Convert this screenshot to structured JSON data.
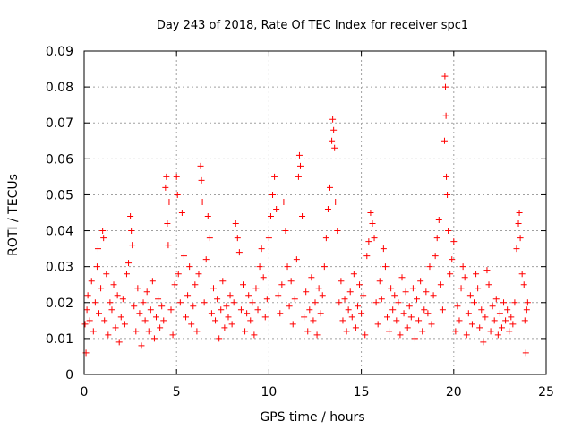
{
  "chart_data": {
    "type": "scatter",
    "title": "Day 243 of 2018, Rate Of TEC Index for receiver spc1",
    "xlabel": "GPS time / hours",
    "ylabel": "ROTI / TECUs",
    "xlim": [
      0,
      25
    ],
    "ylim": [
      0,
      0.09
    ],
    "xticks": [
      "0",
      "5",
      "10",
      "15",
      "20",
      "25"
    ],
    "yticks": [
      "0",
      "0.01",
      "0.02",
      "0.03",
      "0.04",
      "0.05",
      "0.06",
      "0.07",
      "0.08",
      "0.09"
    ],
    "grid": true,
    "marker": "plus",
    "color": "#ff0000",
    "series": [
      {
        "points": [
          [
            0.05,
            0.014
          ],
          [
            0.1,
            0.006
          ],
          [
            0.15,
            0.018
          ],
          [
            0.2,
            0.022
          ],
          [
            0.3,
            0.015
          ],
          [
            0.4,
            0.026
          ],
          [
            0.5,
            0.012
          ],
          [
            0.6,
            0.02
          ],
          [
            0.7,
            0.03
          ],
          [
            0.75,
            0.035
          ],
          [
            0.8,
            0.017
          ],
          [
            0.9,
            0.024
          ],
          [
            1.0,
            0.04
          ],
          [
            1.05,
            0.038
          ],
          [
            1.1,
            0.015
          ],
          [
            1.2,
            0.028
          ],
          [
            1.3,
            0.011
          ],
          [
            1.4,
            0.02
          ],
          [
            1.5,
            0.018
          ],
          [
            1.6,
            0.025
          ],
          [
            1.7,
            0.013
          ],
          [
            1.8,
            0.022
          ],
          [
            1.9,
            0.009
          ],
          [
            2.0,
            0.016
          ],
          [
            2.1,
            0.021
          ],
          [
            2.2,
            0.014
          ],
          [
            2.3,
            0.028
          ],
          [
            2.4,
            0.031
          ],
          [
            2.5,
            0.044
          ],
          [
            2.55,
            0.04
          ],
          [
            2.6,
            0.036
          ],
          [
            2.7,
            0.019
          ],
          [
            2.8,
            0.012
          ],
          [
            2.9,
            0.024
          ],
          [
            3.0,
            0.017
          ],
          [
            3.1,
            0.008
          ],
          [
            3.2,
            0.02
          ],
          [
            3.3,
            0.015
          ],
          [
            3.4,
            0.023
          ],
          [
            3.5,
            0.012
          ],
          [
            3.6,
            0.018
          ],
          [
            3.7,
            0.026
          ],
          [
            3.8,
            0.01
          ],
          [
            3.9,
            0.016
          ],
          [
            4.0,
            0.021
          ],
          [
            4.1,
            0.013
          ],
          [
            4.2,
            0.019
          ],
          [
            4.3,
            0.015
          ],
          [
            4.4,
            0.052
          ],
          [
            4.45,
            0.055
          ],
          [
            4.5,
            0.042
          ],
          [
            4.55,
            0.036
          ],
          [
            4.6,
            0.048
          ],
          [
            4.7,
            0.018
          ],
          [
            4.8,
            0.011
          ],
          [
            4.9,
            0.025
          ],
          [
            5.0,
            0.055
          ],
          [
            5.05,
            0.05
          ],
          [
            5.1,
            0.028
          ],
          [
            5.2,
            0.02
          ],
          [
            5.3,
            0.045
          ],
          [
            5.4,
            0.033
          ],
          [
            5.5,
            0.016
          ],
          [
            5.6,
            0.022
          ],
          [
            5.7,
            0.03
          ],
          [
            5.8,
            0.014
          ],
          [
            5.9,
            0.019
          ],
          [
            6.0,
            0.025
          ],
          [
            6.1,
            0.012
          ],
          [
            6.2,
            0.028
          ],
          [
            6.3,
            0.058
          ],
          [
            6.35,
            0.054
          ],
          [
            6.4,
            0.048
          ],
          [
            6.5,
            0.02
          ],
          [
            6.6,
            0.032
          ],
          [
            6.7,
            0.044
          ],
          [
            6.8,
            0.038
          ],
          [
            6.9,
            0.017
          ],
          [
            7.0,
            0.024
          ],
          [
            7.1,
            0.015
          ],
          [
            7.2,
            0.021
          ],
          [
            7.3,
            0.01
          ],
          [
            7.4,
            0.018
          ],
          [
            7.5,
            0.026
          ],
          [
            7.6,
            0.013
          ],
          [
            7.7,
            0.019
          ],
          [
            7.8,
            0.016
          ],
          [
            7.9,
            0.022
          ],
          [
            8.0,
            0.014
          ],
          [
            8.1,
            0.02
          ],
          [
            8.2,
            0.042
          ],
          [
            8.3,
            0.038
          ],
          [
            8.4,
            0.034
          ],
          [
            8.5,
            0.018
          ],
          [
            8.6,
            0.025
          ],
          [
            8.7,
            0.012
          ],
          [
            8.8,
            0.017
          ],
          [
            8.9,
            0.022
          ],
          [
            9.0,
            0.015
          ],
          [
            9.1,
            0.02
          ],
          [
            9.2,
            0.011
          ],
          [
            9.3,
            0.024
          ],
          [
            9.4,
            0.018
          ],
          [
            9.5,
            0.03
          ],
          [
            9.6,
            0.035
          ],
          [
            9.7,
            0.027
          ],
          [
            9.8,
            0.016
          ],
          [
            9.9,
            0.021
          ],
          [
            10.0,
            0.038
          ],
          [
            10.1,
            0.044
          ],
          [
            10.2,
            0.05
          ],
          [
            10.3,
            0.055
          ],
          [
            10.4,
            0.046
          ],
          [
            10.5,
            0.022
          ],
          [
            10.6,
            0.017
          ],
          [
            10.7,
            0.025
          ],
          [
            10.8,
            0.048
          ],
          [
            10.9,
            0.04
          ],
          [
            11.0,
            0.03
          ],
          [
            11.1,
            0.019
          ],
          [
            11.2,
            0.026
          ],
          [
            11.3,
            0.014
          ],
          [
            11.4,
            0.021
          ],
          [
            11.5,
            0.032
          ],
          [
            11.6,
            0.055
          ],
          [
            11.65,
            0.061
          ],
          [
            11.7,
            0.058
          ],
          [
            11.8,
            0.044
          ],
          [
            11.9,
            0.016
          ],
          [
            12.0,
            0.023
          ],
          [
            12.1,
            0.012
          ],
          [
            12.2,
            0.018
          ],
          [
            12.3,
            0.027
          ],
          [
            12.4,
            0.015
          ],
          [
            12.5,
            0.02
          ],
          [
            12.6,
            0.011
          ],
          [
            12.7,
            0.024
          ],
          [
            12.8,
            0.017
          ],
          [
            12.9,
            0.022
          ],
          [
            13.0,
            0.03
          ],
          [
            13.1,
            0.038
          ],
          [
            13.2,
            0.046
          ],
          [
            13.3,
            0.052
          ],
          [
            13.4,
            0.065
          ],
          [
            13.45,
            0.071
          ],
          [
            13.5,
            0.068
          ],
          [
            13.55,
            0.063
          ],
          [
            13.6,
            0.048
          ],
          [
            13.7,
            0.04
          ],
          [
            13.8,
            0.02
          ],
          [
            13.9,
            0.026
          ],
          [
            14.0,
            0.015
          ],
          [
            14.1,
            0.021
          ],
          [
            14.2,
            0.012
          ],
          [
            14.3,
            0.018
          ],
          [
            14.4,
            0.023
          ],
          [
            14.5,
            0.016
          ],
          [
            14.6,
            0.028
          ],
          [
            14.7,
            0.013
          ],
          [
            14.8,
            0.019
          ],
          [
            14.9,
            0.025
          ],
          [
            15.0,
            0.017
          ],
          [
            15.1,
            0.022
          ],
          [
            15.2,
            0.011
          ],
          [
            15.3,
            0.033
          ],
          [
            15.4,
            0.037
          ],
          [
            15.5,
            0.045
          ],
          [
            15.6,
            0.042
          ],
          [
            15.7,
            0.038
          ],
          [
            15.8,
            0.02
          ],
          [
            15.9,
            0.014
          ],
          [
            16.0,
            0.026
          ],
          [
            16.1,
            0.021
          ],
          [
            16.2,
            0.035
          ],
          [
            16.3,
            0.03
          ],
          [
            16.4,
            0.016
          ],
          [
            16.5,
            0.012
          ],
          [
            16.6,
            0.024
          ],
          [
            16.7,
            0.018
          ],
          [
            16.8,
            0.022
          ],
          [
            16.9,
            0.015
          ],
          [
            17.0,
            0.02
          ],
          [
            17.1,
            0.011
          ],
          [
            17.2,
            0.027
          ],
          [
            17.3,
            0.017
          ],
          [
            17.4,
            0.023
          ],
          [
            17.5,
            0.013
          ],
          [
            17.6,
            0.019
          ],
          [
            17.7,
            0.016
          ],
          [
            17.8,
            0.024
          ],
          [
            17.9,
            0.01
          ],
          [
            18.0,
            0.021
          ],
          [
            18.1,
            0.015
          ],
          [
            18.2,
            0.026
          ],
          [
            18.3,
            0.012
          ],
          [
            18.4,
            0.018
          ],
          [
            18.5,
            0.023
          ],
          [
            18.6,
            0.017
          ],
          [
            18.7,
            0.03
          ],
          [
            18.8,
            0.014
          ],
          [
            18.9,
            0.022
          ],
          [
            19.0,
            0.033
          ],
          [
            19.1,
            0.038
          ],
          [
            19.2,
            0.043
          ],
          [
            19.3,
            0.025
          ],
          [
            19.4,
            0.018
          ],
          [
            19.5,
            0.065
          ],
          [
            19.52,
            0.083
          ],
          [
            19.55,
            0.08
          ],
          [
            19.58,
            0.072
          ],
          [
            19.6,
            0.055
          ],
          [
            19.65,
            0.05
          ],
          [
            19.7,
            0.04
          ],
          [
            19.8,
            0.028
          ],
          [
            19.9,
            0.032
          ],
          [
            20.0,
            0.037
          ],
          [
            20.1,
            0.012
          ],
          [
            20.2,
            0.019
          ],
          [
            20.3,
            0.015
          ],
          [
            20.4,
            0.024
          ],
          [
            20.5,
            0.03
          ],
          [
            20.6,
            0.027
          ],
          [
            20.7,
            0.011
          ],
          [
            20.8,
            0.017
          ],
          [
            20.9,
            0.022
          ],
          [
            21.0,
            0.014
          ],
          [
            21.1,
            0.02
          ],
          [
            21.2,
            0.028
          ],
          [
            21.3,
            0.024
          ],
          [
            21.4,
            0.013
          ],
          [
            21.5,
            0.018
          ],
          [
            21.6,
            0.009
          ],
          [
            21.7,
            0.016
          ],
          [
            21.8,
            0.029
          ],
          [
            21.9,
            0.025
          ],
          [
            22.0,
            0.012
          ],
          [
            22.1,
            0.019
          ],
          [
            22.2,
            0.015
          ],
          [
            22.3,
            0.021
          ],
          [
            22.4,
            0.011
          ],
          [
            22.5,
            0.017
          ],
          [
            22.6,
            0.013
          ],
          [
            22.7,
            0.02
          ],
          [
            22.8,
            0.015
          ],
          [
            22.9,
            0.018
          ],
          [
            23.0,
            0.012
          ],
          [
            23.1,
            0.016
          ],
          [
            23.2,
            0.014
          ],
          [
            23.3,
            0.02
          ],
          [
            23.4,
            0.035
          ],
          [
            23.5,
            0.042
          ],
          [
            23.55,
            0.045
          ],
          [
            23.6,
            0.038
          ],
          [
            23.7,
            0.028
          ],
          [
            23.8,
            0.025
          ],
          [
            23.85,
            0.015
          ],
          [
            23.9,
            0.006
          ],
          [
            23.95,
            0.018
          ],
          [
            24.0,
            0.02
          ]
        ]
      }
    ]
  }
}
